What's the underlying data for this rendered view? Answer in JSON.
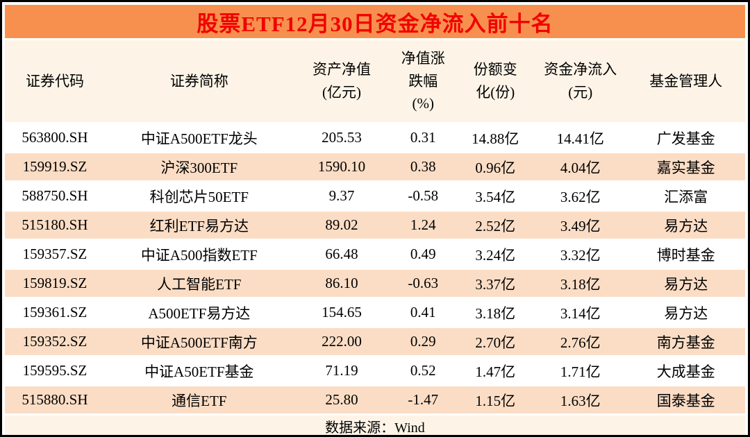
{
  "page_title": "股票ETF12月30日资金净流入前十名",
  "colors": {
    "title_bar_bg": "#F7904E",
    "title_text": "#F20000",
    "header_row_bg": "#FDF4E7",
    "alt_row_bg": "#FBDDC5",
    "row_bg": "#FFFFFF",
    "outer_border": "#000000"
  },
  "chart_data": {
    "type": "table",
    "title": "股票ETF12月30日资金净流入前十名",
    "columns": [
      "证券代码",
      "证券简称",
      "资产净值\n(亿元)",
      "净值涨\n跌幅\n(%)",
      "份额变\n化(份)",
      "资金净流入\n(元)",
      "基金管理人"
    ],
    "rows": [
      [
        "563800.SH",
        "中证A500ETF龙头",
        "205.53",
        "0.31",
        "14.88亿",
        "14.41亿",
        "广发基金"
      ],
      [
        "159919.SZ",
        "沪深300ETF",
        "1590.10",
        "0.38",
        "0.96亿",
        "4.04亿",
        "嘉实基金"
      ],
      [
        "588750.SH",
        "科创芯片50ETF",
        "9.37",
        "-0.58",
        "3.54亿",
        "3.62亿",
        "汇添富"
      ],
      [
        "515180.SH",
        "红利ETF易方达",
        "89.02",
        "1.24",
        "2.52亿",
        "3.49亿",
        "易方达"
      ],
      [
        "159357.SZ",
        "中证A500指数ETF",
        "66.48",
        "0.49",
        "3.24亿",
        "3.32亿",
        "博时基金"
      ],
      [
        "159819.SZ",
        "人工智能ETF",
        "86.10",
        "-0.63",
        "3.37亿",
        "3.18亿",
        "易方达"
      ],
      [
        "159361.SZ",
        "A500ETF易方达",
        "154.65",
        "0.41",
        "3.18亿",
        "3.14亿",
        "易方达"
      ],
      [
        "159352.SZ",
        "中证A500ETF南方",
        "222.00",
        "0.29",
        "2.70亿",
        "2.76亿",
        "南方基金"
      ],
      [
        "159595.SZ",
        "中证A50ETF基金",
        "71.19",
        "0.52",
        "1.47亿",
        "1.71亿",
        "大成基金"
      ],
      [
        "515880.SH",
        "通信ETF",
        "25.80",
        "-1.47",
        "1.15亿",
        "1.63亿",
        "国泰基金"
      ]
    ],
    "source": "数据来源：Wind"
  }
}
